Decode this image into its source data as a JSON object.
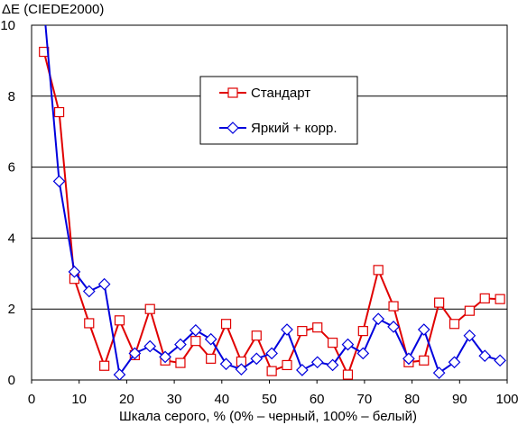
{
  "chart_data": {
    "type": "line",
    "title": "",
    "ylabel": "ΔE (CIEDE2000)",
    "xlabel": "Шкала серого, % (0% – черный, 100% – белый)",
    "xlim": [
      0,
      100
    ],
    "ylim": [
      0,
      10
    ],
    "xticks": [
      0,
      10,
      20,
      30,
      40,
      50,
      60,
      70,
      80,
      90,
      100
    ],
    "yticks": [
      0,
      2,
      4,
      6,
      8,
      10
    ],
    "grid": "horizontal",
    "legend_position": "center",
    "series": [
      {
        "name": "Стандарт",
        "color": "#e00000",
        "marker": "square",
        "x": [
          2.6,
          5.8,
          9.0,
          12.1,
          15.3,
          18.5,
          21.7,
          24.9,
          28.1,
          31.3,
          34.5,
          37.7,
          40.9,
          44.1,
          47.3,
          50.5,
          53.7,
          56.9,
          60.1,
          63.3,
          66.5,
          69.7,
          72.9,
          76.1,
          79.3,
          82.5,
          85.7,
          88.9,
          92.1,
          95.3,
          98.5
        ],
        "values": [
          9.25,
          7.55,
          2.85,
          1.6,
          0.4,
          1.68,
          0.7,
          2.0,
          0.55,
          0.48,
          1.1,
          0.6,
          1.58,
          0.52,
          1.25,
          0.25,
          0.42,
          1.38,
          1.48,
          1.05,
          0.15,
          1.38,
          3.1,
          2.08,
          0.5,
          0.55,
          2.18,
          1.58,
          1.95,
          2.3,
          2.28
        ]
      },
      {
        "name": "Яркий + корр.",
        "color": "#0000dd",
        "marker": "diamond",
        "x": [
          2.6,
          5.8,
          9.0,
          12.1,
          15.3,
          18.5,
          21.7,
          24.9,
          28.1,
          31.3,
          34.5,
          37.7,
          40.9,
          44.1,
          47.3,
          50.5,
          53.7,
          56.9,
          60.1,
          63.3,
          66.5,
          69.7,
          72.9,
          76.1,
          79.3,
          82.5,
          85.7,
          88.9,
          92.1,
          95.3,
          98.5
        ],
        "values": [
          10.5,
          5.6,
          3.05,
          2.5,
          2.7,
          0.15,
          0.75,
          0.95,
          0.65,
          1.0,
          1.4,
          1.15,
          0.45,
          0.3,
          0.6,
          0.75,
          1.42,
          0.28,
          0.5,
          0.42,
          1.0,
          0.75,
          1.72,
          1.5,
          0.6,
          1.42,
          0.2,
          0.5,
          1.25,
          0.68,
          0.55
        ]
      }
    ]
  }
}
